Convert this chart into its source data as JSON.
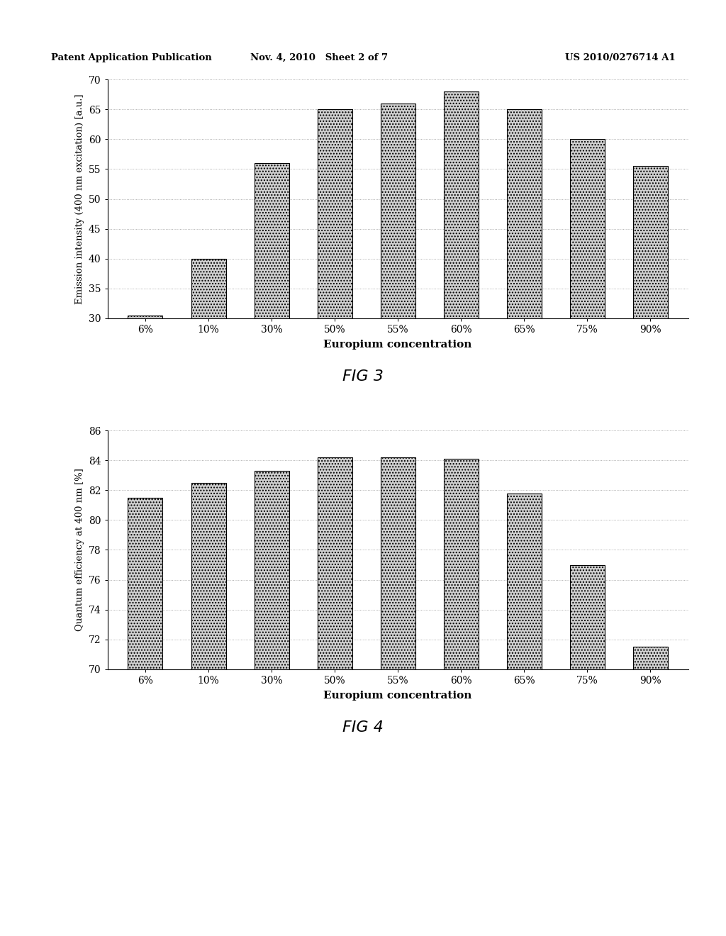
{
  "fig3": {
    "categories": [
      "6%",
      "10%",
      "30%",
      "50%",
      "55%",
      "60%",
      "65%",
      "75%",
      "90%"
    ],
    "values": [
      30.5,
      40.0,
      56.0,
      65.0,
      66.0,
      68.0,
      65.0,
      60.0,
      55.5
    ],
    "ylabel": "Emission intensity (400 nm excitation) [a.u.]",
    "xlabel": "Europium concentration",
    "ylim": [
      30,
      70
    ],
    "yticks": [
      30,
      35,
      40,
      45,
      50,
      55,
      60,
      65,
      70
    ],
    "fig_label": "FIG 3"
  },
  "fig4": {
    "categories": [
      "6%",
      "10%",
      "30%",
      "50%",
      "55%",
      "60%",
      "65%",
      "75%",
      "90%"
    ],
    "values": [
      81.5,
      82.5,
      83.3,
      84.2,
      84.2,
      84.1,
      81.8,
      77.0,
      71.5
    ],
    "ylabel": "Quantum efficiency at 400 nm [%]",
    "xlabel": "Europium concentration",
    "ylim": [
      70,
      86
    ],
    "yticks": [
      70,
      72,
      74,
      76,
      78,
      80,
      82,
      84,
      86
    ],
    "fig_label": "FIG 4"
  },
  "bar_color": "#d0d0d0",
  "bar_edgecolor": "#000000",
  "bar_hatch": "....",
  "background_color": "#ffffff",
  "grid_color": "#999999",
  "header_left": "Patent Application Publication",
  "header_mid": "Nov. 4, 2010   Sheet 2 of 7",
  "header_right": "US 2010/0276714 A1",
  "bar_width": 0.55
}
